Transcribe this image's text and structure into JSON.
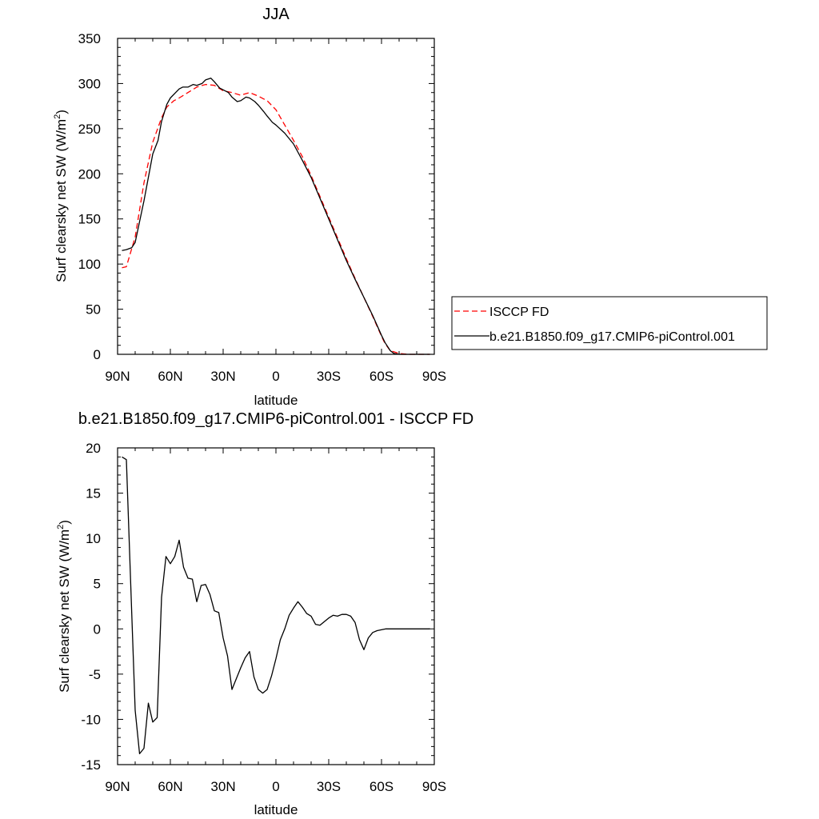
{
  "chart_data": [
    {
      "type": "line",
      "title": "JJA",
      "xlabel": "latitude",
      "ylabel_main": "Surf clearsky net SW (W/m",
      "ylabel_sup": "2",
      "ylabel_tail": ")",
      "xlim": [
        -90,
        90
      ],
      "ylim": [
        0,
        350
      ],
      "x_ticks": [
        -90,
        -60,
        -30,
        0,
        30,
        60,
        90
      ],
      "x_tick_labels": [
        "90N",
        "60N",
        "30N",
        "0",
        "30S",
        "60S",
        "90S"
      ],
      "y_ticks": [
        0,
        50,
        100,
        150,
        200,
        250,
        300,
        350
      ],
      "y_tick_labels": [
        "0",
        "50",
        "100",
        "150",
        "200",
        "250",
        "300",
        "350"
      ],
      "grid": false,
      "legend_position": "right",
      "series": [
        {
          "name": "ISCCP FD",
          "color": "#ff0000",
          "dash": "dashed",
          "x": [
            -87.5,
            -85,
            -80,
            -75,
            -70,
            -65,
            -62,
            -58,
            -55,
            -50,
            -45,
            -40,
            -35,
            -30,
            -25,
            -20,
            -15,
            -10,
            -5,
            0,
            5,
            10,
            15,
            20,
            25,
            30,
            35,
            40,
            45,
            50,
            55,
            60,
            62,
            65,
            70,
            75,
            80,
            85,
            87.5
          ],
          "y": [
            96,
            97,
            130,
            190,
            235,
            262,
            274,
            281,
            284,
            290,
            296,
            299,
            298,
            292,
            290,
            287,
            290,
            286,
            281,
            271,
            254,
            237,
            219,
            198,
            175,
            152,
            129,
            106,
            84,
            63,
            42,
            20,
            12,
            4,
            1,
            0,
            0,
            0,
            0
          ]
        },
        {
          "name": "b.e21.B1850.f09_g17.CMIP6-piControl.001",
          "color": "#000000",
          "dash": "solid",
          "x": [
            -87.5,
            -85,
            -82,
            -80,
            -75,
            -70,
            -67,
            -65,
            -62,
            -60,
            -57,
            -55,
            -53,
            -50,
            -47,
            -45,
            -42,
            -40,
            -37,
            -35,
            -32,
            -30,
            -27,
            -25,
            -22,
            -20,
            -17,
            -15,
            -12,
            -10,
            -7,
            -5,
            -2,
            0,
            5,
            10,
            15,
            20,
            25,
            30,
            35,
            40,
            45,
            50,
            55,
            60,
            62,
            65,
            67,
            70,
            75,
            80,
            85,
            87.5
          ],
          "y": [
            115,
            116,
            118,
            124,
            170,
            222,
            237,
            258,
            277,
            284,
            290,
            294,
            296,
            296,
            299,
            298,
            300,
            304,
            306,
            302,
            295,
            293,
            290,
            285,
            280,
            281,
            285,
            284,
            280,
            276,
            269,
            264,
            257,
            254,
            245,
            233,
            215,
            196,
            173,
            150,
            127,
            104,
            83,
            63,
            43,
            21,
            13,
            4,
            1,
            0,
            0,
            0,
            0,
            0
          ]
        }
      ]
    },
    {
      "type": "line",
      "title": "b.e21.B1850.f09_g17.CMIP6-piControl.001 - ISCCP FD",
      "xlabel": "latitude",
      "ylabel_main": "Surf clearsky net SW (W/m",
      "ylabel_sup": "2",
      "ylabel_tail": ")",
      "xlim": [
        -90,
        90
      ],
      "ylim": [
        -15,
        20
      ],
      "x_ticks": [
        -90,
        -60,
        -30,
        0,
        30,
        60,
        90
      ],
      "x_tick_labels": [
        "90N",
        "60N",
        "30N",
        "0",
        "30S",
        "60S",
        "90S"
      ],
      "y_ticks": [
        -15,
        -10,
        -5,
        0,
        5,
        10,
        15,
        20
      ],
      "y_tick_labels": [
        "-15",
        "-10",
        "-5",
        "0",
        "5",
        "10",
        "15",
        "20"
      ],
      "grid": false,
      "series": [
        {
          "color": "#000000",
          "dash": "solid",
          "x": [
            -87.5,
            -85,
            -82,
            -80,
            -77.5,
            -75,
            -72.5,
            -70,
            -67.5,
            -65,
            -62.5,
            -60,
            -57.5,
            -55,
            -52.5,
            -50,
            -47.5,
            -45,
            -42.5,
            -40,
            -37.5,
            -35,
            -32.5,
            -30,
            -27.5,
            -25,
            -22.5,
            -20,
            -17.5,
            -15,
            -12.5,
            -10,
            -7.5,
            -5,
            -2.5,
            0,
            2.5,
            5,
            7.5,
            10,
            12.5,
            15,
            17.5,
            20,
            22.5,
            25,
            27.5,
            30,
            32.5,
            35,
            37.5,
            40,
            42.5,
            45,
            47.5,
            50,
            52.5,
            55,
            57.5,
            60,
            62.5,
            65,
            67.5,
            70,
            72.5,
            75,
            77.5,
            80,
            82.5,
            85,
            87.5
          ],
          "y": [
            19.0,
            18.7,
            2.0,
            -9.0,
            -13.8,
            -13.2,
            -8.2,
            -10.3,
            -9.8,
            3.5,
            8.0,
            7.2,
            8.0,
            9.8,
            6.8,
            5.6,
            5.5,
            3.0,
            4.8,
            4.9,
            3.8,
            2.0,
            1.8,
            -1.0,
            -3.0,
            -6.7,
            -5.5,
            -4.3,
            -3.2,
            -2.5,
            -5.3,
            -6.7,
            -7.1,
            -6.7,
            -5.2,
            -3.3,
            -1.2,
            0.0,
            1.5,
            2.3,
            3.0,
            2.4,
            1.7,
            1.4,
            0.5,
            0.4,
            0.8,
            1.2,
            1.5,
            1.4,
            1.6,
            1.6,
            1.4,
            0.7,
            -1.2,
            -2.3,
            -1.0,
            -0.4,
            -0.2,
            -0.1,
            0.0,
            0.0,
            0.0,
            0.0,
            0.0,
            0.0,
            0.0,
            0.0,
            0.0,
            0.0,
            0.0
          ]
        }
      ]
    }
  ]
}
